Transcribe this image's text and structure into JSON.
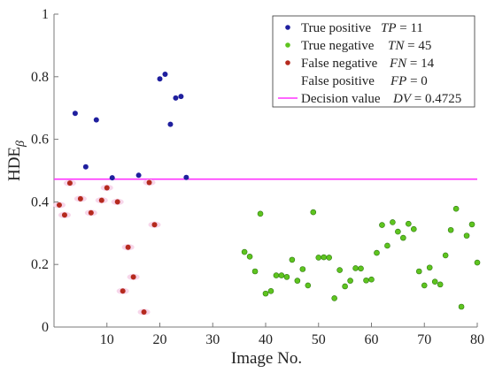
{
  "chart_data": {
    "type": "scatter",
    "xlabel": "Image No.",
    "ylabel": "HDE",
    "ylabel_subscript": "β",
    "xlim": [
      0,
      80
    ],
    "ylim": [
      0,
      1
    ],
    "xticks": [
      10,
      20,
      30,
      40,
      50,
      60,
      70,
      80
    ],
    "yticks": [
      0,
      0.2,
      0.4,
      0.6,
      0.8,
      1
    ],
    "ytick_labels": [
      "0",
      "0.2",
      "0.4",
      "0.6",
      "0.8",
      "1"
    ],
    "grid": false,
    "legend_placement": "top-right",
    "colors": {
      "true_positive": "#1f1f9e",
      "true_negative": "#5ec41f",
      "false_negative": "#b52a1e",
      "false_positive": "#b52a1e",
      "decision_value": "#ff33ff",
      "halo": "#f7d6ea"
    },
    "series": [
      {
        "key": "true_positive",
        "name": "True positive",
        "stat_symbol": "TP",
        "stat_value": "11",
        "x": [
          4,
          6,
          8,
          11,
          16,
          20,
          21,
          22,
          23,
          24,
          25
        ],
        "y": [
          0.683,
          0.512,
          0.662,
          0.477,
          0.485,
          0.793,
          0.808,
          0.648,
          0.732,
          0.737,
          0.478
        ]
      },
      {
        "key": "true_negative",
        "name": "True negative",
        "stat_symbol": "TN",
        "stat_value": "45",
        "x": [
          36,
          37,
          38,
          39,
          40,
          41,
          42,
          43,
          44,
          45,
          46,
          47,
          48,
          49,
          50,
          51,
          52,
          53,
          54,
          55,
          56,
          57,
          58,
          59,
          60,
          61,
          62,
          63,
          64,
          65,
          66,
          67,
          68,
          69,
          70,
          71,
          72,
          73,
          74,
          75,
          76,
          77,
          78,
          79,
          80
        ],
        "y": [
          0.24,
          0.225,
          0.178,
          0.362,
          0.107,
          0.115,
          0.165,
          0.165,
          0.16,
          0.215,
          0.148,
          0.185,
          0.133,
          0.367,
          0.222,
          0.223,
          0.222,
          0.092,
          0.182,
          0.13,
          0.148,
          0.188,
          0.187,
          0.149,
          0.152,
          0.237,
          0.326,
          0.26,
          0.335,
          0.305,
          0.285,
          0.33,
          0.313,
          0.178,
          0.133,
          0.19,
          0.145,
          0.136,
          0.229,
          0.31,
          0.378,
          0.065,
          0.292,
          0.328,
          0.206
        ]
      },
      {
        "key": "false_negative",
        "name": "False negative",
        "stat_symbol": "FN",
        "stat_value": "14",
        "x": [
          1,
          2,
          3,
          5,
          7,
          9,
          10,
          12,
          13,
          14,
          15,
          17,
          18,
          19
        ],
        "y": [
          0.39,
          0.358,
          0.46,
          0.41,
          0.365,
          0.405,
          0.445,
          0.4,
          0.115,
          0.255,
          0.16,
          0.048,
          0.462,
          0.327
        ]
      },
      {
        "key": "false_positive",
        "name": "False positive",
        "stat_symbol": "FP",
        "stat_value": "0",
        "x": [],
        "y": []
      }
    ],
    "decision_line": {
      "name": "Decision value",
      "stat_symbol": "DV",
      "value": 0.4725,
      "value_label": "0.4725"
    }
  }
}
